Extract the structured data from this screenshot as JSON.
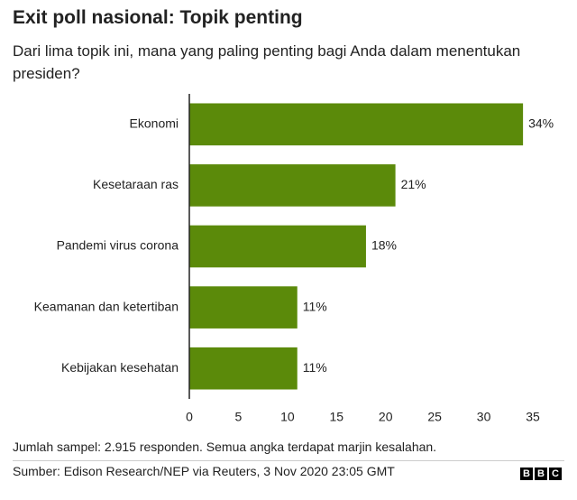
{
  "chart_data": {
    "type": "bar",
    "orientation": "horizontal",
    "title": "Exit poll nasional: Topik penting",
    "subtitle": "Dari lima topik ini, mana yang paling penting bagi Anda dalam menentukan presiden?",
    "categories": [
      "Ekonomi",
      "Kesetaraan ras",
      "Pandemi virus corona",
      "Keamanan dan ketertiban",
      "Kebijakan kesehatan"
    ],
    "values": [
      34,
      21,
      18,
      11,
      11
    ],
    "value_labels": [
      "34%",
      "21%",
      "18%",
      "11%",
      "11%"
    ],
    "color": "#5b8a0a",
    "xlim": [
      0,
      35
    ],
    "xticks": [
      0,
      5,
      10,
      15,
      20,
      25,
      30,
      35
    ],
    "grid": false,
    "note": "Jumlah sampel: 2.915 responden. Semua angka terdapat marjin kesalahan.",
    "source": "Sumber: Edison Research/NEP via Reuters, 3 Nov 2020 23:05 GMT",
    "logo": [
      "B",
      "B",
      "C"
    ]
  }
}
